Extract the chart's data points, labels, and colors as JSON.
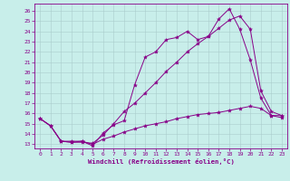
{
  "xlabel": "Windchill (Refroidissement éolien,°C)",
  "background_color": "#c8eeea",
  "line_color": "#880088",
  "grid_color": "#aacccc",
  "xlim": [
    -0.5,
    23.5
  ],
  "ylim": [
    12.6,
    26.7
  ],
  "xticks": [
    0,
    1,
    2,
    3,
    4,
    5,
    6,
    7,
    8,
    9,
    10,
    11,
    12,
    13,
    14,
    15,
    16,
    17,
    18,
    19,
    20,
    21,
    22,
    23
  ],
  "yticks": [
    13,
    14,
    15,
    16,
    17,
    18,
    19,
    20,
    21,
    22,
    23,
    24,
    25,
    26
  ],
  "line1_x": [
    0,
    1,
    2,
    3,
    4,
    5,
    6,
    7,
    8,
    9,
    10,
    11,
    12,
    13,
    14,
    15,
    16,
    17,
    18,
    19,
    20,
    21,
    22,
    23
  ],
  "line1_y": [
    15.5,
    14.8,
    13.3,
    13.3,
    13.3,
    12.85,
    14.1,
    14.9,
    15.3,
    18.8,
    21.5,
    22.0,
    23.2,
    23.4,
    24.0,
    23.2,
    23.5,
    25.2,
    26.2,
    24.2,
    21.2,
    17.5,
    15.8,
    15.8
  ],
  "line2_x": [
    0,
    1,
    2,
    3,
    4,
    5,
    6,
    7,
    8,
    9,
    10,
    11,
    12,
    13,
    14,
    15,
    16,
    17,
    18,
    19,
    20,
    21,
    22,
    23
  ],
  "line2_y": [
    15.5,
    14.8,
    13.3,
    13.2,
    13.2,
    13.1,
    13.9,
    15.0,
    16.2,
    17.0,
    18.0,
    19.0,
    20.1,
    21.0,
    22.0,
    22.8,
    23.5,
    24.3,
    25.1,
    25.5,
    24.2,
    18.2,
    16.2,
    15.8
  ],
  "line3_x": [
    0,
    1,
    2,
    3,
    4,
    5,
    6,
    7,
    8,
    9,
    10,
    11,
    12,
    13,
    14,
    15,
    16,
    17,
    18,
    19,
    20,
    21,
    22,
    23
  ],
  "line3_y": [
    15.5,
    14.8,
    13.3,
    13.2,
    13.3,
    13.0,
    13.5,
    13.8,
    14.2,
    14.5,
    14.8,
    15.0,
    15.2,
    15.5,
    15.7,
    15.9,
    16.0,
    16.1,
    16.3,
    16.5,
    16.7,
    16.5,
    15.8,
    15.6
  ],
  "tick_fontsize": 4.5,
  "label_fontsize": 5.2
}
